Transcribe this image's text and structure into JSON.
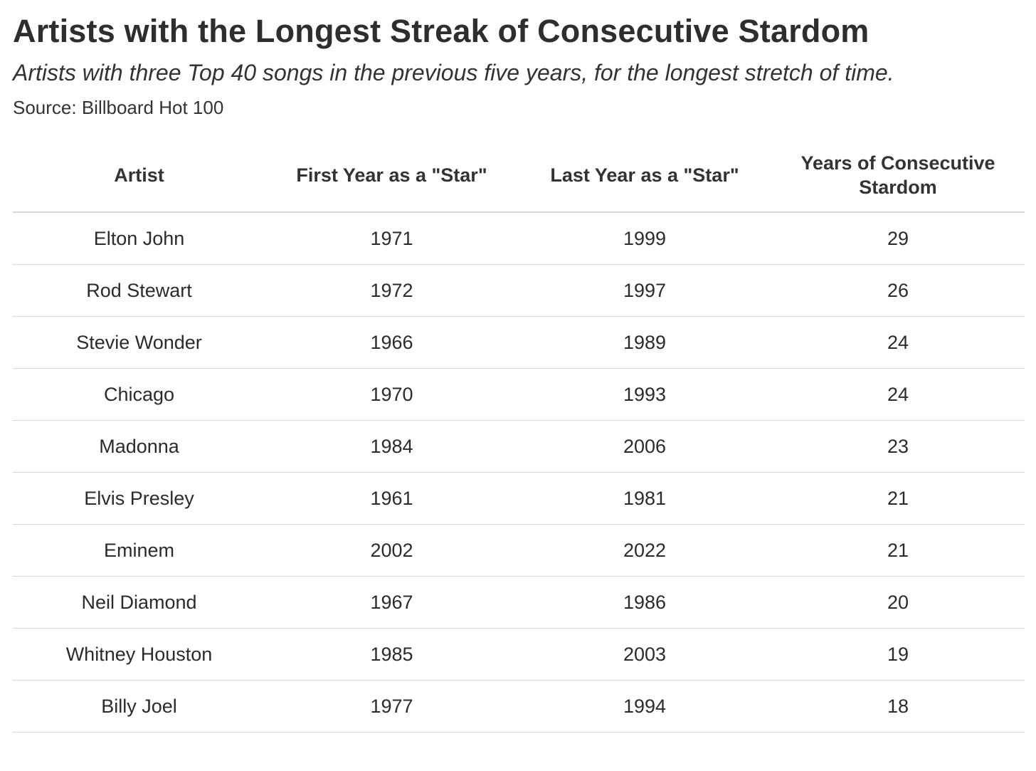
{
  "header": {
    "title": "Artists with the Longest Streak of Consecutive Stardom",
    "subtitle": "Artists with three Top 40 songs in the previous five years, for the longest stretch of time.",
    "source": "Source: Billboard Hot 100"
  },
  "table": {
    "columns": [
      "Artist",
      "First Year as a \"Star\"",
      "Last Year as a \"Star\"",
      "Years of Consecutive Stardom"
    ],
    "rows": [
      [
        "Elton John",
        "1971",
        "1999",
        "29"
      ],
      [
        "Rod Stewart",
        "1972",
        "1997",
        "26"
      ],
      [
        "Stevie Wonder",
        "1966",
        "1989",
        "24"
      ],
      [
        "Chicago",
        "1970",
        "1993",
        "24"
      ],
      [
        "Madonna",
        "1984",
        "2006",
        "23"
      ],
      [
        "Elvis Presley",
        "1961",
        "1981",
        "21"
      ],
      [
        "Eminem",
        "2002",
        "2022",
        "21"
      ],
      [
        "Neil Diamond",
        "1967",
        "1986",
        "20"
      ],
      [
        "Whitney Houston",
        "1985",
        "2003",
        "19"
      ],
      [
        "Billy Joel",
        "1977",
        "1994",
        "18"
      ]
    ]
  }
}
